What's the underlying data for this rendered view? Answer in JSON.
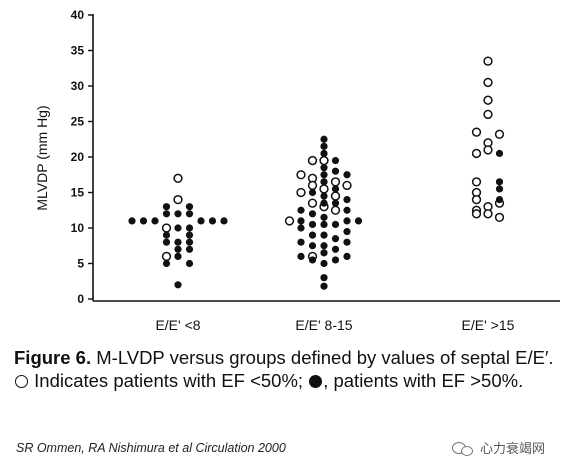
{
  "chart_data": {
    "type": "scatter",
    "title": "",
    "xlabel": "",
    "ylabel": "MLVDP (mm Hg)",
    "ylim": [
      0,
      40
    ],
    "yticks": [
      0,
      5,
      10,
      15,
      20,
      25,
      30,
      35,
      40
    ],
    "categories": [
      "E/E' <8",
      "E/E' 8-15",
      "E/E' >15"
    ],
    "grid": false,
    "legend": "caption",
    "series": [
      {
        "marker": "open",
        "points": [
          {
            "g": 0,
            "y": 17.0,
            "off": 0
          },
          {
            "g": 0,
            "y": 14.0,
            "off": 0
          },
          {
            "g": 0,
            "y": 10.0,
            "off": -1
          },
          {
            "g": 0,
            "y": 6.0,
            "off": -1
          },
          {
            "g": 1,
            "y": 19.5,
            "off": -1
          },
          {
            "g": 1,
            "y": 19.5,
            "off": 0
          },
          {
            "g": 1,
            "y": 17.5,
            "off": -2
          },
          {
            "g": 1,
            "y": 17.0,
            "off": -1
          },
          {
            "g": 1,
            "y": 16.5,
            "off": 1
          },
          {
            "g": 1,
            "y": 16.0,
            "off": -1
          },
          {
            "g": 1,
            "y": 16.0,
            "off": 2
          },
          {
            "g": 1,
            "y": 15.5,
            "off": 0
          },
          {
            "g": 1,
            "y": 15.0,
            "off": -2
          },
          {
            "g": 1,
            "y": 14.5,
            "off": 1
          },
          {
            "g": 1,
            "y": 13.5,
            "off": -1
          },
          {
            "g": 1,
            "y": 13.0,
            "off": 0
          },
          {
            "g": 1,
            "y": 12.5,
            "off": 1
          },
          {
            "g": 1,
            "y": 11.0,
            "off": -3
          },
          {
            "g": 1,
            "y": 6.0,
            "off": -1
          },
          {
            "g": 2,
            "y": 33.5,
            "off": 0
          },
          {
            "g": 2,
            "y": 30.5,
            "off": 0
          },
          {
            "g": 2,
            "y": 28.0,
            "off": 0
          },
          {
            "g": 2,
            "y": 26.0,
            "off": 0
          },
          {
            "g": 2,
            "y": 23.5,
            "off": -1
          },
          {
            "g": 2,
            "y": 23.2,
            "off": 1
          },
          {
            "g": 2,
            "y": 22.0,
            "off": 0
          },
          {
            "g": 2,
            "y": 21.0,
            "off": 0
          },
          {
            "g": 2,
            "y": 20.5,
            "off": -1
          },
          {
            "g": 2,
            "y": 16.5,
            "off": -1
          },
          {
            "g": 2,
            "y": 15.0,
            "off": -1
          },
          {
            "g": 2,
            "y": 14.0,
            "off": -1
          },
          {
            "g": 2,
            "y": 13.0,
            "off": 0
          },
          {
            "g": 2,
            "y": 13.5,
            "off": 1
          },
          {
            "g": 2,
            "y": 12.5,
            "off": -1
          },
          {
            "g": 2,
            "y": 12.0,
            "off": 0
          },
          {
            "g": 2,
            "y": 11.5,
            "off": 1
          },
          {
            "g": 2,
            "y": 12.0,
            "off": -1
          }
        ]
      },
      {
        "marker": "filled",
        "points": [
          {
            "g": 0,
            "y": 13.0,
            "off": -1
          },
          {
            "g": 0,
            "y": 13.0,
            "off": 1
          },
          {
            "g": 0,
            "y": 12.0,
            "off": -1
          },
          {
            "g": 0,
            "y": 12.0,
            "off": 0
          },
          {
            "g": 0,
            "y": 12.0,
            "off": 1
          },
          {
            "g": 0,
            "y": 11.0,
            "off": -4
          },
          {
            "g": 0,
            "y": 11.0,
            "off": -3
          },
          {
            "g": 0,
            "y": 11.0,
            "off": -2
          },
          {
            "g": 0,
            "y": 11.0,
            "off": 2
          },
          {
            "g": 0,
            "y": 11.0,
            "off": 3
          },
          {
            "g": 0,
            "y": 11.0,
            "off": 4
          },
          {
            "g": 0,
            "y": 10.0,
            "off": 0
          },
          {
            "g": 0,
            "y": 10.0,
            "off": 1
          },
          {
            "g": 0,
            "y": 9.0,
            "off": -1
          },
          {
            "g": 0,
            "y": 9.0,
            "off": 1
          },
          {
            "g": 0,
            "y": 8.0,
            "off": -1
          },
          {
            "g": 0,
            "y": 8.0,
            "off": 0
          },
          {
            "g": 0,
            "y": 8.0,
            "off": 1
          },
          {
            "g": 0,
            "y": 7.0,
            "off": 0
          },
          {
            "g": 0,
            "y": 7.0,
            "off": 1
          },
          {
            "g": 0,
            "y": 6.0,
            "off": 0
          },
          {
            "g": 0,
            "y": 5.0,
            "off": -1
          },
          {
            "g": 0,
            "y": 5.0,
            "off": 1
          },
          {
            "g": 0,
            "y": 2.0,
            "off": 0
          },
          {
            "g": 1,
            "y": 22.5,
            "off": 0
          },
          {
            "g": 1,
            "y": 21.5,
            "off": 0
          },
          {
            "g": 1,
            "y": 20.5,
            "off": 0
          },
          {
            "g": 1,
            "y": 19.5,
            "off": 1
          },
          {
            "g": 1,
            "y": 18.5,
            "off": 0
          },
          {
            "g": 1,
            "y": 18.0,
            "off": 1
          },
          {
            "g": 1,
            "y": 17.5,
            "off": 0
          },
          {
            "g": 1,
            "y": 17.5,
            "off": 2
          },
          {
            "g": 1,
            "y": 16.5,
            "off": 0
          },
          {
            "g": 1,
            "y": 15.5,
            "off": 1
          },
          {
            "g": 1,
            "y": 15.0,
            "off": -1
          },
          {
            "g": 1,
            "y": 14.5,
            "off": 0
          },
          {
            "g": 1,
            "y": 14.0,
            "off": 2
          },
          {
            "g": 1,
            "y": 13.5,
            "off": 0
          },
          {
            "g": 1,
            "y": 13.5,
            "off": 1
          },
          {
            "g": 1,
            "y": 12.5,
            "off": -2
          },
          {
            "g": 1,
            "y": 12.5,
            "off": 2
          },
          {
            "g": 1,
            "y": 12.0,
            "off": -1
          },
          {
            "g": 1,
            "y": 11.5,
            "off": 0
          },
          {
            "g": 1,
            "y": 11.0,
            "off": -2
          },
          {
            "g": 1,
            "y": 11.0,
            "off": 2
          },
          {
            "g": 1,
            "y": 11.0,
            "off": 3
          },
          {
            "g": 1,
            "y": 10.5,
            "off": -1
          },
          {
            "g": 1,
            "y": 10.5,
            "off": 0
          },
          {
            "g": 1,
            "y": 10.5,
            "off": 1
          },
          {
            "g": 1,
            "y": 10.0,
            "off": -2
          },
          {
            "g": 1,
            "y": 9.5,
            "off": 2
          },
          {
            "g": 1,
            "y": 9.0,
            "off": -1
          },
          {
            "g": 1,
            "y": 9.0,
            "off": 0
          },
          {
            "g": 1,
            "y": 8.5,
            "off": 1
          },
          {
            "g": 1,
            "y": 8.0,
            "off": -2
          },
          {
            "g": 1,
            "y": 8.0,
            "off": 2
          },
          {
            "g": 1,
            "y": 7.5,
            "off": -1
          },
          {
            "g": 1,
            "y": 7.5,
            "off": 0
          },
          {
            "g": 1,
            "y": 7.0,
            "off": 1
          },
          {
            "g": 1,
            "y": 6.5,
            "off": 0
          },
          {
            "g": 1,
            "y": 6.0,
            "off": -2
          },
          {
            "g": 1,
            "y": 6.0,
            "off": 2
          },
          {
            "g": 1,
            "y": 5.5,
            "off": -1
          },
          {
            "g": 1,
            "y": 5.5,
            "off": 1
          },
          {
            "g": 1,
            "y": 5.0,
            "off": 0
          },
          {
            "g": 1,
            "y": 3.0,
            "off": 0
          },
          {
            "g": 1,
            "y": 1.8,
            "off": 0
          },
          {
            "g": 2,
            "y": 20.5,
            "off": 1
          },
          {
            "g": 2,
            "y": 16.5,
            "off": 1
          },
          {
            "g": 2,
            "y": 15.5,
            "off": 1
          },
          {
            "g": 2,
            "y": 14.0,
            "off": 1
          }
        ]
      }
    ]
  },
  "caption": {
    "figure_label": "Figure 6.",
    "text_1": " M-LVDP versus groups defined by values of septal E/E′. ",
    "text_2": " Indicates patients with EF <50%; ",
    "text_3": ", patients with EF >50%."
  },
  "citation": "SR Ommen, RA Nishimura et al  Circulation 2000",
  "watermark": {
    "text": "心力衰竭网",
    "icon": "wechat-icon"
  }
}
